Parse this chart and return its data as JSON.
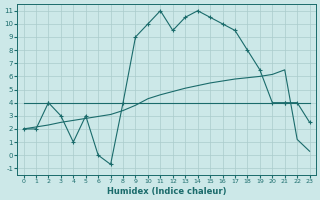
{
  "xlabel": "Humidex (Indice chaleur)",
  "background_color": "#cce8e8",
  "grid_color": "#aacccc",
  "line_color": "#1a6b6b",
  "xlim": [
    -0.5,
    23.5
  ],
  "ylim": [
    -1.5,
    11.5
  ],
  "xticks": [
    0,
    1,
    2,
    3,
    4,
    5,
    6,
    7,
    8,
    9,
    10,
    11,
    12,
    13,
    14,
    15,
    16,
    17,
    18,
    19,
    20,
    21,
    22,
    23
  ],
  "yticks": [
    -1,
    0,
    1,
    2,
    3,
    4,
    5,
    6,
    7,
    8,
    9,
    10,
    11
  ],
  "series1_x": [
    0,
    1,
    2,
    3,
    4,
    5,
    6,
    7,
    8,
    9,
    10,
    11,
    12,
    13,
    14,
    15,
    16,
    17,
    18,
    19,
    20,
    21,
    22,
    23
  ],
  "series1_y": [
    2,
    2,
    4,
    3,
    1,
    3,
    0,
    -0.7,
    4,
    9,
    10,
    11,
    9.5,
    10.5,
    11,
    10.5,
    10,
    9.5,
    8,
    6.5,
    4,
    4,
    4,
    2.5
  ],
  "series2_x": [
    2,
    21
  ],
  "series2_y": [
    4,
    4
  ],
  "series2_full_x": [
    0,
    1,
    2,
    3,
    4,
    5,
    6,
    7,
    8,
    9,
    10,
    11,
    12,
    13,
    14,
    15,
    16,
    17,
    18,
    19,
    20,
    21,
    22,
    23
  ],
  "series2_full_y": [
    4,
    4,
    4,
    4,
    4,
    4,
    4,
    4,
    4,
    4,
    4,
    4,
    4,
    4,
    4,
    4,
    4,
    4,
    4,
    4,
    4,
    4,
    4,
    4
  ],
  "series3_x": [
    0,
    1,
    2,
    3,
    4,
    5,
    6,
    7,
    8,
    9,
    10,
    11,
    12,
    13,
    14,
    15,
    16,
    17,
    18,
    19,
    20,
    21,
    22,
    23
  ],
  "series3_y": [
    2,
    2.15,
    2.3,
    2.5,
    2.65,
    2.8,
    2.95,
    3.1,
    3.4,
    3.8,
    4.3,
    4.6,
    4.85,
    5.1,
    5.3,
    5.5,
    5.65,
    5.8,
    5.9,
    6.0,
    6.15,
    6.5,
    1.2,
    0.3
  ]
}
